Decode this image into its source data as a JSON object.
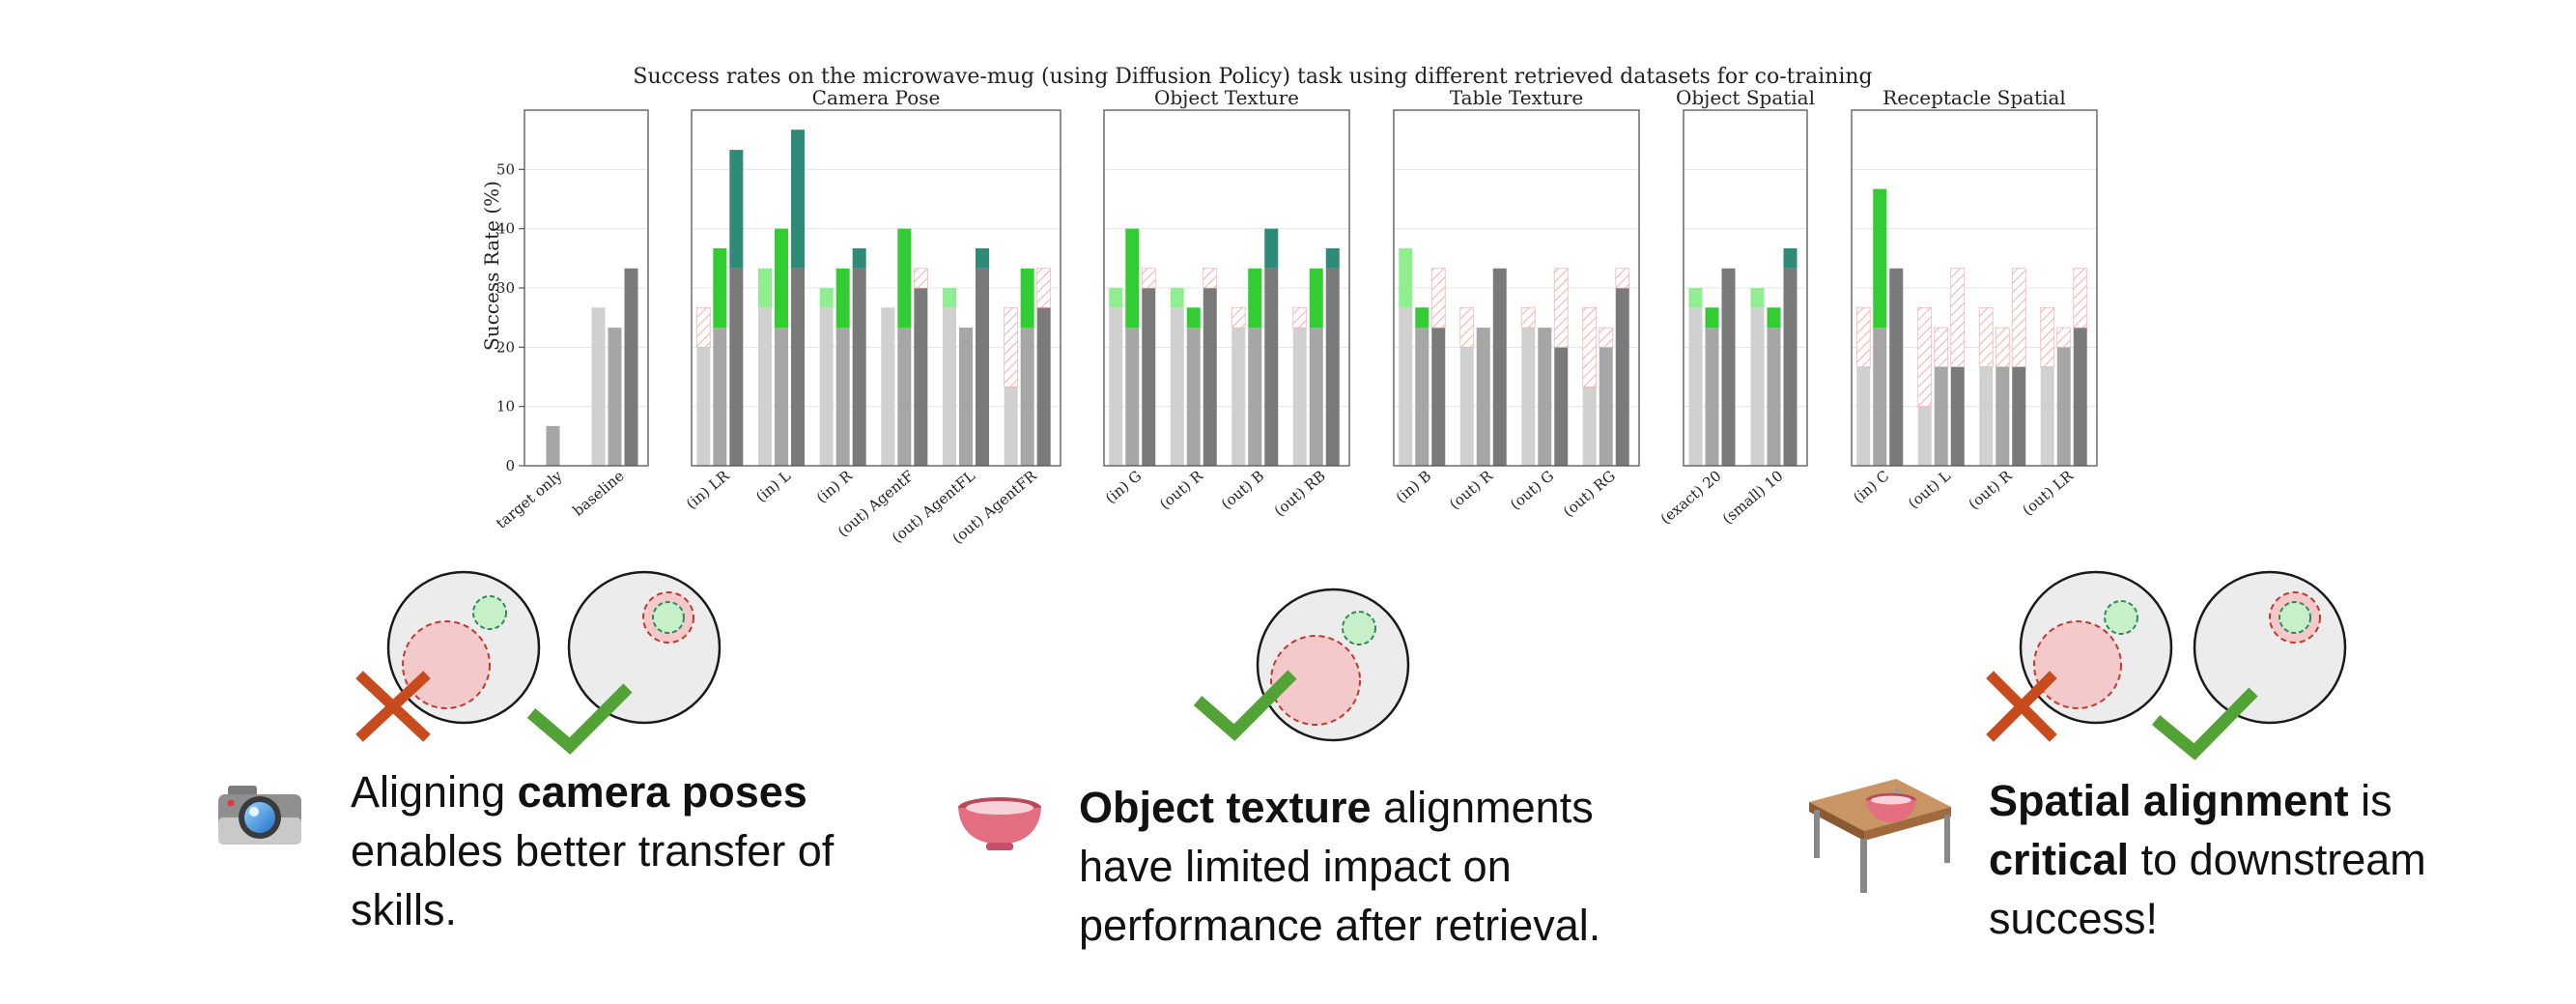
{
  "chart_data": {
    "type": "bar",
    "title": "Success rates on the microwave-mug (using Diffusion Policy) task using different retrieved datasets for co-training",
    "ylabel": "Success Rate (%)",
    "ylim": [
      0,
      60
    ],
    "yticks": [
      0,
      10,
      20,
      30,
      40,
      50
    ],
    "panels": [
      {
        "title": "",
        "categories": [
          "target only",
          "baseline"
        ],
        "groups": [
          [
            null,
            {
              "base": 6.7
            },
            null
          ],
          [
            {
              "base": 26.7
            },
            {
              "base": 23.3
            },
            {
              "base": 33.3
            }
          ]
        ]
      },
      {
        "title": "Camera Pose",
        "categories": [
          "(in) LR",
          "(in) L",
          "(in) R",
          "(out) AgentF",
          "(out) AgentFL",
          "(out) AgentFR"
        ],
        "groups": [
          [
            {
              "base": 26.7,
              "value": 20.0
            },
            {
              "base": 23.3,
              "value": 36.7
            },
            {
              "base": 33.3,
              "value": 53.3
            }
          ],
          [
            {
              "base": 26.7,
              "value": 33.3
            },
            {
              "base": 23.3,
              "value": 40.0
            },
            {
              "base": 33.3,
              "value": 56.7
            }
          ],
          [
            {
              "base": 26.7,
              "value": 30.0
            },
            {
              "base": 23.3,
              "value": 33.3
            },
            {
              "base": 33.3,
              "value": 36.7
            }
          ],
          [
            {
              "base": 26.7,
              "value": 26.7
            },
            {
              "base": 23.3,
              "value": 40.0
            },
            {
              "base": 33.3,
              "value": 30.0
            }
          ],
          [
            {
              "base": 26.7,
              "value": 30.0
            },
            {
              "base": 23.3,
              "value": 23.3
            },
            {
              "base": 33.3,
              "value": 36.7
            }
          ],
          [
            {
              "base": 26.7,
              "value": 13.3
            },
            {
              "base": 23.3,
              "value": 33.3
            },
            {
              "base": 33.3,
              "value": 26.7
            }
          ]
        ]
      },
      {
        "title": "Object Texture",
        "categories": [
          "(in) G",
          "(out) R",
          "(out) B",
          "(out) RB"
        ],
        "groups": [
          [
            {
              "base": 26.7,
              "value": 30.0
            },
            {
              "base": 23.3,
              "value": 40.0
            },
            {
              "base": 33.3,
              "value": 30.0
            }
          ],
          [
            {
              "base": 26.7,
              "value": 30.0
            },
            {
              "base": 23.3,
              "value": 26.7
            },
            {
              "base": 33.3,
              "value": 30.0
            }
          ],
          [
            {
              "base": 26.7,
              "value": 23.3
            },
            {
              "base": 23.3,
              "value": 33.3
            },
            {
              "base": 33.3,
              "value": 40.0
            }
          ],
          [
            {
              "base": 26.7,
              "value": 23.3
            },
            {
              "base": 23.3,
              "value": 33.3
            },
            {
              "base": 33.3,
              "value": 36.7
            }
          ]
        ]
      },
      {
        "title": "Table Texture",
        "categories": [
          "(in) B",
          "(out) R",
          "(out) G",
          "(out) RG"
        ],
        "groups": [
          [
            {
              "base": 26.7,
              "value": 36.7
            },
            {
              "base": 23.3,
              "value": 26.7
            },
            {
              "base": 33.3,
              "value": 23.3
            }
          ],
          [
            {
              "base": 26.7,
              "value": 20.0
            },
            {
              "base": 23.3,
              "value": 23.3
            },
            {
              "base": 33.3,
              "value": 33.3
            }
          ],
          [
            {
              "base": 26.7,
              "value": 23.3
            },
            {
              "base": 23.3,
              "value": 23.3
            },
            {
              "base": 33.3,
              "value": 20.0
            }
          ],
          [
            {
              "base": 26.7,
              "value": 13.3
            },
            {
              "base": 23.3,
              "value": 20.0
            },
            {
              "base": 33.3,
              "value": 30.0
            }
          ]
        ]
      },
      {
        "title": "Object Spatial",
        "categories": [
          "(exact) 20",
          "(small) 10"
        ],
        "groups": [
          [
            {
              "base": 26.7,
              "value": 30.0
            },
            {
              "base": 23.3,
              "value": 26.7
            },
            {
              "base": 33.3,
              "value": 33.3
            }
          ],
          [
            {
              "base": 26.7,
              "value": 30.0
            },
            {
              "base": 23.3,
              "value": 26.7
            },
            {
              "base": 33.3,
              "value": 36.7
            }
          ]
        ]
      },
      {
        "title": "Receptacle Spatial",
        "categories": [
          "(in) C",
          "(out) L",
          "(out) R",
          "(out) LR"
        ],
        "groups": [
          [
            {
              "base": 26.7,
              "value": 16.7
            },
            {
              "base": 23.3,
              "value": 46.7
            },
            {
              "base": 33.3,
              "value": 33.3
            }
          ],
          [
            {
              "base": 26.7,
              "value": 10.0
            },
            {
              "base": 23.3,
              "value": 16.7
            },
            {
              "base": 33.3,
              "value": 16.7
            }
          ],
          [
            {
              "base": 26.7,
              "value": 16.7
            },
            {
              "base": 23.3,
              "value": 16.7
            },
            {
              "base": 33.3,
              "value": 16.7
            }
          ],
          [
            {
              "base": 26.7,
              "value": 16.7
            },
            {
              "base": 23.3,
              "value": 20.0
            },
            {
              "base": 33.3,
              "value": 23.3
            }
          ]
        ]
      }
    ],
    "grid": true,
    "legend": "none",
    "colors": {
      "bar_shades": [
        "#d0d0d0",
        "#a6a6a6",
        "#7a7a7a"
      ],
      "gain_shades": [
        "#90ee90",
        "#32cd32",
        "#2e8b77"
      ],
      "drop_hatch": "#f4b4b4"
    }
  },
  "notes": [
    {
      "pre": "Aligning ",
      "bold": "camera poses",
      "post": " enables better transfer of skills."
    },
    {
      "pre": "",
      "bold": "Object texture",
      "post": " alignments have limited impact on performance after retrieval."
    },
    {
      "pre": "",
      "bold": "Spatial alignment",
      "mid": " is ",
      "bold2": "critical",
      "post": " to downstream success!"
    }
  ],
  "icons": [
    "camera-icon",
    "bowl-icon",
    "table-with-bowl-icon",
    "cross-mark-icon",
    "check-mark-icon"
  ]
}
